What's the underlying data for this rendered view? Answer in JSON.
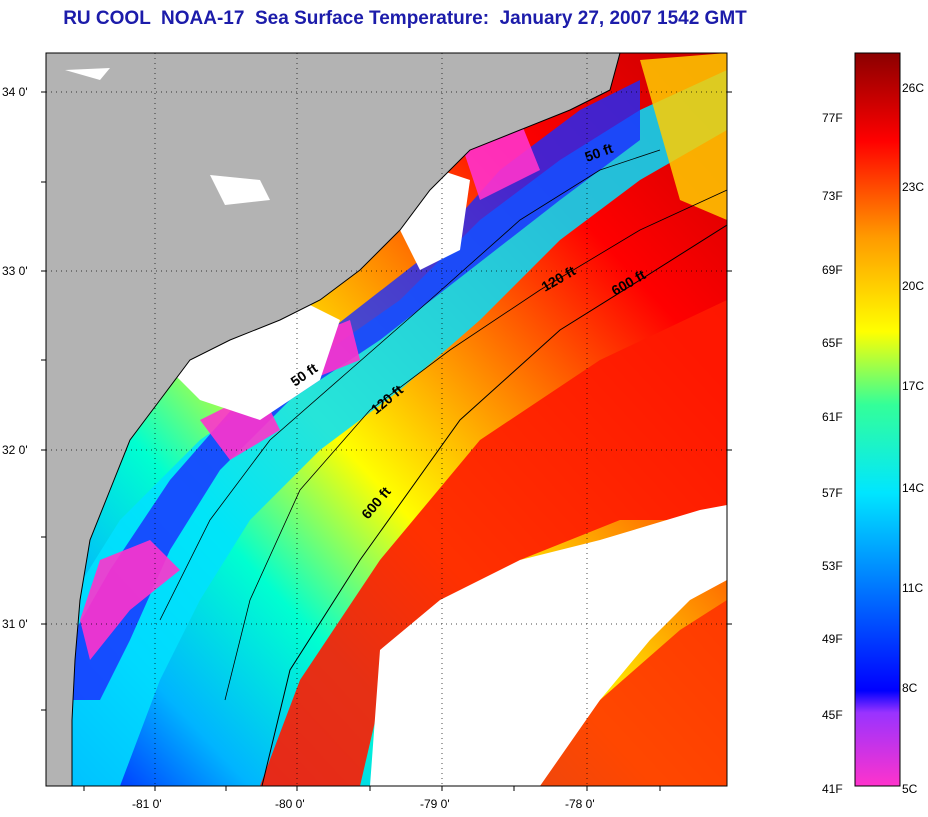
{
  "title": "RU COOL  NOAA-17  Sea Surface Temperature:  January 27, 2007 1542 GMT",
  "latitude_ticks": [
    "34 0'",
    "33 0'",
    "32 0'",
    "31 0'"
  ],
  "longitude_ticks": [
    "-81 0'",
    "-80 0'",
    "-79 0'",
    "-78 0'"
  ],
  "contour_labels": [
    "50 ft",
    "120 ft",
    "600 ft",
    "50 ft",
    "120 ft",
    "600 ft"
  ],
  "colorbar": {
    "fahrenheit": [
      "77F",
      "73F",
      "69F",
      "65F",
      "61F",
      "57F",
      "53F",
      "49F",
      "45F",
      "41F"
    ],
    "celsius": [
      "26C",
      "23C",
      "20C",
      "17C",
      "14C",
      "11C",
      "8C",
      "5C"
    ]
  },
  "colors": {
    "land": "#b3b3b3",
    "cloud": "#ffffff",
    "title": "#1c1caa"
  }
}
